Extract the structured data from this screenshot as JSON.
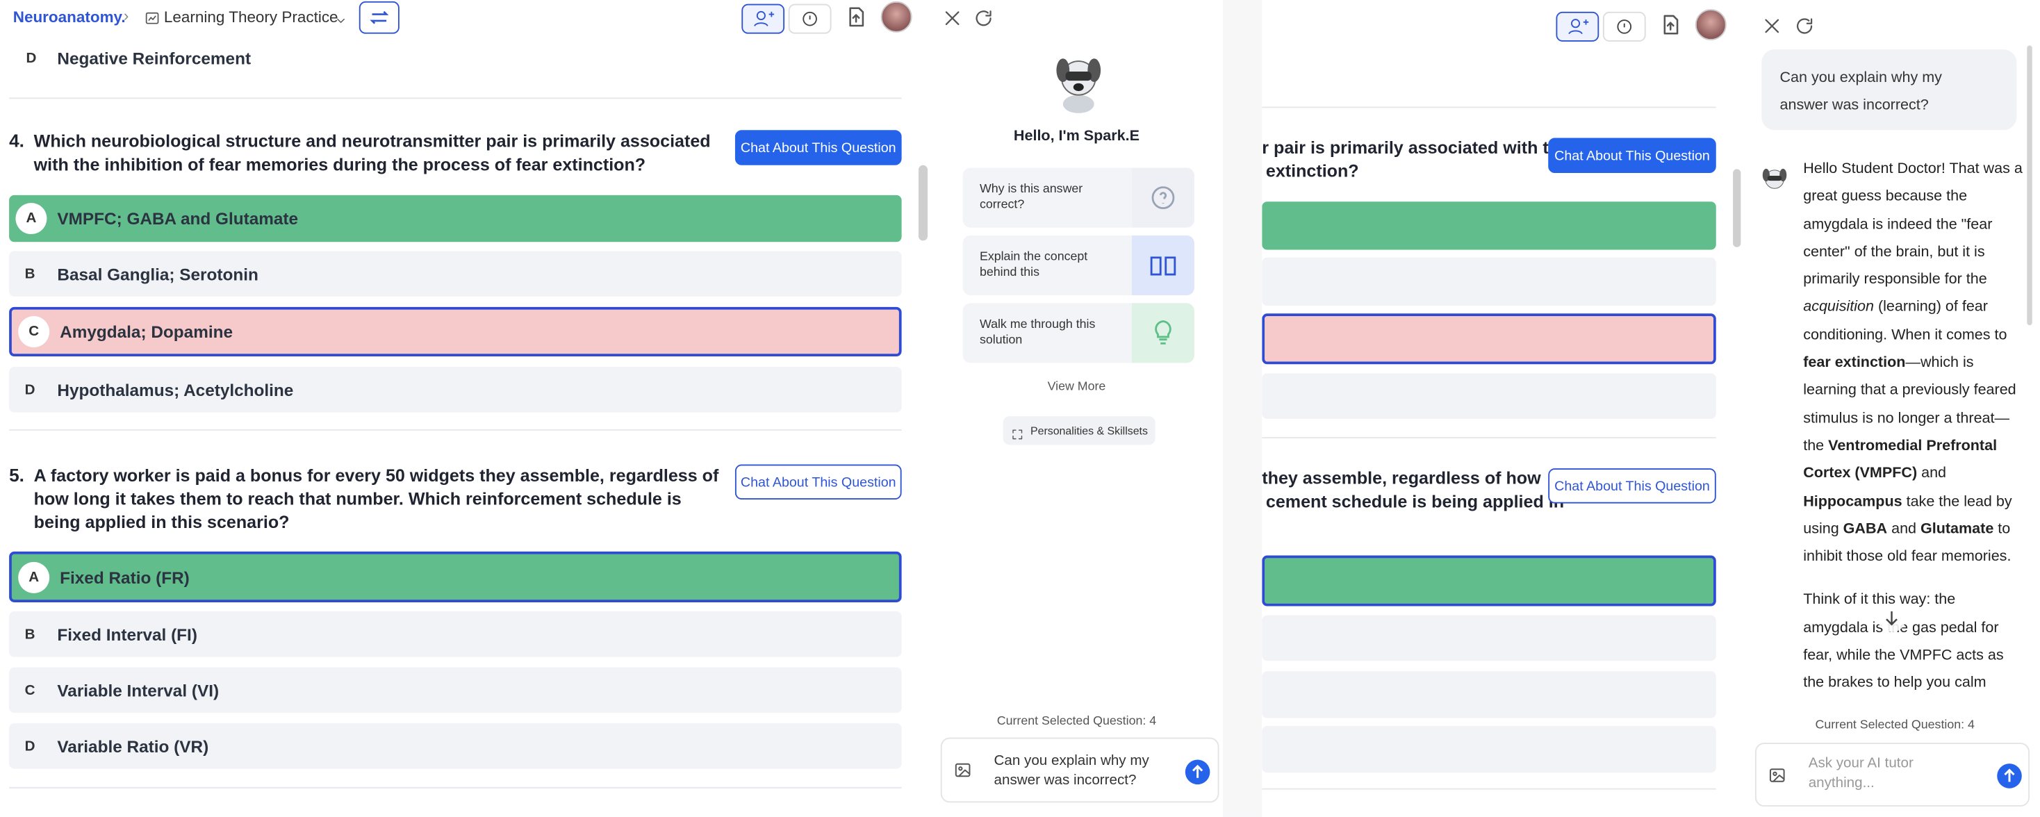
{
  "header": {
    "course": "Neuroanatomy.",
    "practice": "Learning Theory Practice"
  },
  "quiz": {
    "previous_option": {
      "letter": "D",
      "text": "Negative Reinforcement"
    },
    "questions": [
      {
        "number": "4.",
        "text": "Which neurobiological structure and neurotransmitter pair is primarily associated with the inhibition of fear memories during the process of fear extinction?",
        "button": "Chat About This Question",
        "button_style": "filled",
        "options": [
          {
            "letter": "A",
            "text": "VMPFC; GABA and Glutamate",
            "state": "correct"
          },
          {
            "letter": "B",
            "text": "Basal Ganglia; Serotonin",
            "state": "default"
          },
          {
            "letter": "C",
            "text": "Amygdala; Dopamine",
            "state": "incorrect-selected"
          },
          {
            "letter": "D",
            "text": "Hypothalamus; Acetylcholine",
            "state": "default"
          }
        ]
      },
      {
        "number": "5.",
        "text": "A factory worker is paid a bonus for every 50 widgets they assemble, regardless of how long it takes them to reach that number. Which reinforcement schedule is being applied in this scenario?",
        "button": "Chat About This Question",
        "button_style": "outline",
        "options": [
          {
            "letter": "A",
            "text": "Fixed Ratio (FR)",
            "state": "correct-selected"
          },
          {
            "letter": "B",
            "text": "Fixed Interval (FI)",
            "state": "default"
          },
          {
            "letter": "C",
            "text": "Variable Interval (VI)",
            "state": "default"
          },
          {
            "letter": "D",
            "text": "Variable Ratio (VR)",
            "state": "default"
          }
        ]
      }
    ]
  },
  "tutor": {
    "greeting": "Hello, I'm Spark.E",
    "suggestions": [
      "Why is this answer correct?",
      "Explain the concept behind this",
      "Walk me through this solution"
    ],
    "view_more": "View More",
    "personalities": "Personalities & Skillsets",
    "current_question": "Current Selected Question: 4",
    "input_text": "Can you explain why my answer was incorrect?"
  },
  "right_pane": {
    "q4_lines": [
      "r pair is primarily associated with the",
      "extinction?"
    ],
    "q5_lines": [
      "they assemble, regardless of how",
      "cement schedule is being applied in"
    ]
  },
  "right_chat": {
    "user_message": "Can you explain why my answer was incorrect?",
    "response": [
      [
        {
          "text": "Hello Student Doctor! That was a great guess because the amygdala is indeed the \"fear center\" of the brain, but it is primarily responsible for the "
        },
        {
          "text": "acquisition",
          "style": "italic"
        },
        {
          "text": " (learning) of fear conditioning. When it comes to "
        },
        {
          "text": "fear extinction",
          "style": "bold"
        },
        {
          "text": "—which is learning that a previously feared stimulus is no longer a threat—the "
        },
        {
          "text": "Ventromedial Prefrontal Cortex (VMPFC)",
          "style": "bold"
        },
        {
          "text": " and "
        },
        {
          "text": "Hippocampus",
          "style": "bold"
        },
        {
          "text": " take the lead by using "
        },
        {
          "text": "GABA",
          "style": "bold"
        },
        {
          "text": " and "
        },
        {
          "text": "Glutamate",
          "style": "bold"
        },
        {
          "text": " to inhibit those old fear memories."
        }
      ],
      [
        {
          "text": "Think of it this way: the amygdala is the gas pedal for fear, while the VMPFC acts as the brakes to help you calm"
        }
      ]
    ],
    "current_question": "Current Selected Question: 4",
    "placeholder": "Ask your AI tutor anything..."
  }
}
